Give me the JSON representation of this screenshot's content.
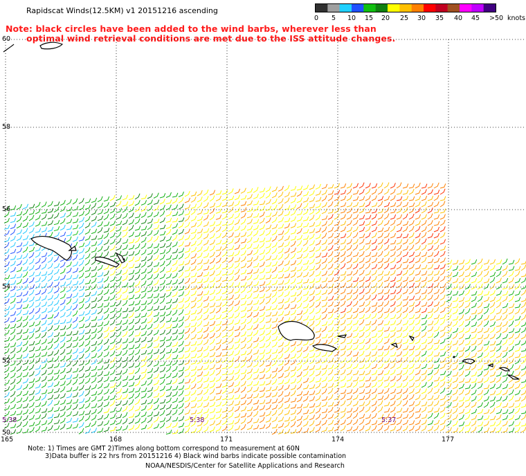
{
  "header": {
    "title": "Rapidscat Winds(12.5KM) v1 20151216 ascending",
    "note_line1": "Note: black circles have been added to the wind barbs, wherever less than",
    "note_line2": "optimal wind retrieval conditions are met due to the ISS attitude changes."
  },
  "legend": {
    "unit": "knots",
    "labels": [
      "0",
      "5",
      "10",
      "15",
      "20",
      "25",
      "30",
      "35",
      "40",
      "45",
      ">50"
    ],
    "colors": [
      "#303030",
      "#a0a0a0",
      "#20d0ff",
      "#2050ff",
      "#10c010",
      "#108010",
      "#ffff00",
      "#ffc000",
      "#ff8000",
      "#ff0000",
      "#c00020",
      "#a05020",
      "#ff00ff",
      "#c000ff",
      "#400080"
    ]
  },
  "map": {
    "lat_labels": [
      "60",
      "58",
      "56",
      "54",
      "52",
      "50"
    ],
    "lon_labels": [
      "165",
      "168",
      "171",
      "174",
      "177"
    ],
    "time_labels": [
      "5:38",
      "5:38",
      "5:37"
    ],
    "colors": {
      "grid": "#000000",
      "land": "#000000",
      "note": "#ff1a1a",
      "time": "#6a0070"
    }
  },
  "footer": {
    "line1": "Note: 1) Times are GMT 2)Times along bottom correspond to measurement at 60N",
    "line2": "3)Data buffer is 22 hrs from 20151216 4) Black wind barbs indicate possible contamination",
    "line3": "NOAA/NESDIS/Center for Satellite Applications and Research"
  }
}
